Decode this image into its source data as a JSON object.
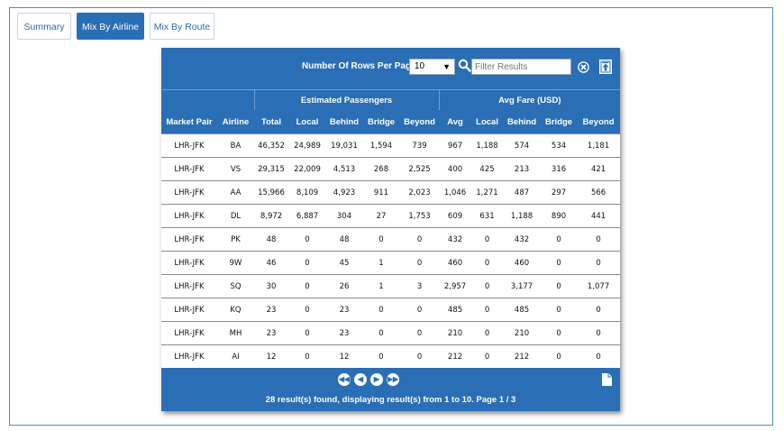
{
  "tabs": [
    {
      "label": "Summary",
      "active": false
    },
    {
      "label": "Mix By Airline",
      "active": true
    },
    {
      "label": "Mix By Route",
      "active": false
    }
  ],
  "toolbar": {
    "rows_label": "Number Of Rows Per Page",
    "rows_value": "10",
    "filter_placeholder": "Filter Results"
  },
  "table": {
    "groups": {
      "passengers": "Estimated Passengers",
      "fare": "Avg Fare (USD)"
    },
    "columns": [
      "Market Pair",
      "Airline",
      "Total",
      "Local",
      "Behind",
      "Bridge",
      "Beyond",
      "Avg",
      "Local",
      "Behind",
      "Bridge",
      "Beyond"
    ],
    "rows": [
      [
        "LHR-JFK",
        "BA",
        "46,352",
        "24,989",
        "19,031",
        "1,594",
        "739",
        "967",
        "1,188",
        "574",
        "534",
        "1,181"
      ],
      [
        "LHR-JFK",
        "VS",
        "29,315",
        "22,009",
        "4,513",
        "268",
        "2,525",
        "400",
        "425",
        "213",
        "316",
        "421"
      ],
      [
        "LHR-JFK",
        "AA",
        "15,966",
        "8,109",
        "4,923",
        "911",
        "2,023",
        "1,046",
        "1,271",
        "487",
        "297",
        "566"
      ],
      [
        "LHR-JFK",
        "DL",
        "8,972",
        "6,887",
        "304",
        "27",
        "1,753",
        "609",
        "631",
        "1,188",
        "890",
        "441"
      ],
      [
        "LHR-JFK",
        "PK",
        "48",
        "0",
        "48",
        "0",
        "0",
        "432",
        "0",
        "432",
        "0",
        "0"
      ],
      [
        "LHR-JFK",
        "9W",
        "46",
        "0",
        "45",
        "1",
        "0",
        "460",
        "0",
        "460",
        "0",
        "0"
      ],
      [
        "LHR-JFK",
        "SQ",
        "30",
        "0",
        "26",
        "1",
        "3",
        "2,957",
        "0",
        "3,177",
        "0",
        "1,077"
      ],
      [
        "LHR-JFK",
        "KQ",
        "23",
        "0",
        "23",
        "0",
        "0",
        "485",
        "0",
        "485",
        "0",
        "0"
      ],
      [
        "LHR-JFK",
        "MH",
        "23",
        "0",
        "23",
        "0",
        "0",
        "210",
        "0",
        "210",
        "0",
        "0"
      ],
      [
        "LHR-JFK",
        "AI",
        "12",
        "0",
        "12",
        "0",
        "0",
        "212",
        "0",
        "212",
        "0",
        "0"
      ]
    ]
  },
  "pager": {
    "first_icon": "first-page-icon",
    "prev_icon": "prev-page-icon",
    "next_icon": "next-page-icon",
    "last_icon": "last-page-icon",
    "status": "28 result(s) found, displaying result(s) from 1 to 10. Page 1 / 3"
  },
  "colors": {
    "accent": "#2a6eb5",
    "frame": "#4a8bc4"
  }
}
